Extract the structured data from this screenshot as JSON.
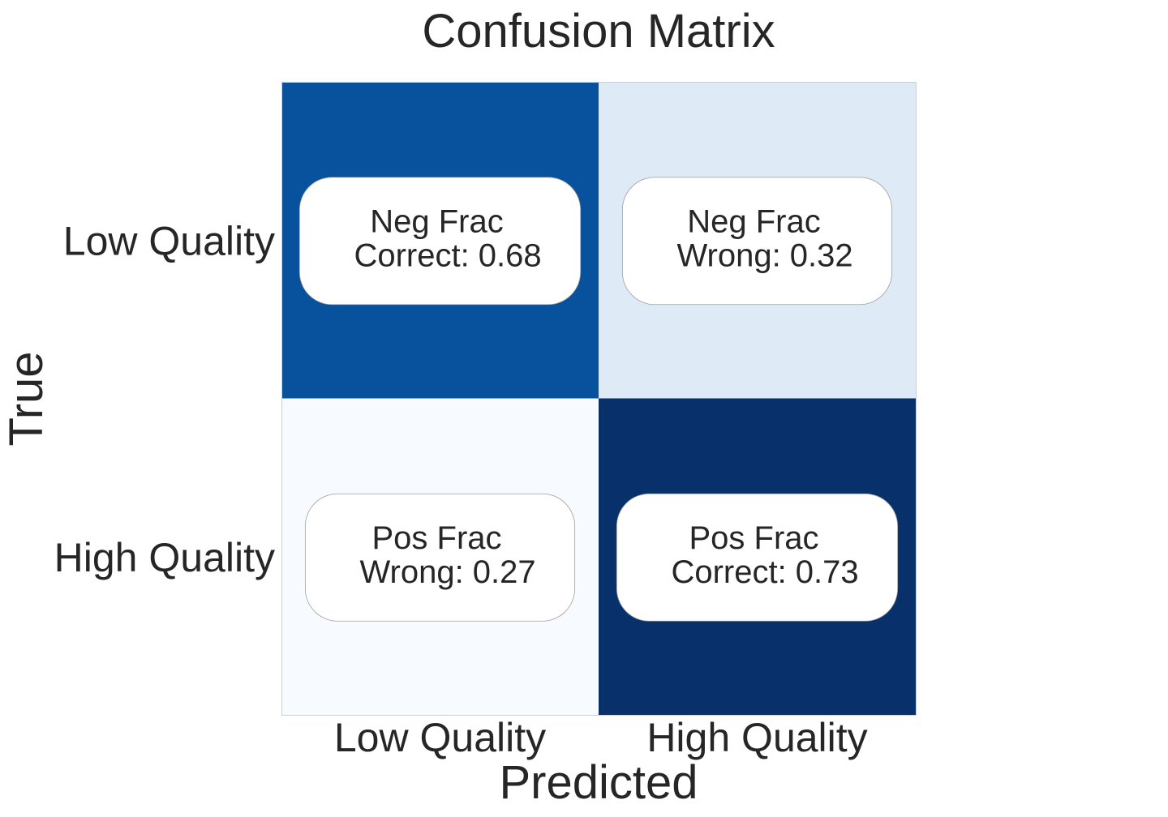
{
  "chart_data": {
    "type": "heatmap",
    "title": "Confusion Matrix",
    "xlabel": "Predicted",
    "ylabel": "True",
    "x_categories": [
      "Low Quality",
      "High Quality"
    ],
    "y_categories": [
      "Low Quality",
      "High Quality"
    ],
    "colormap": "Blues",
    "color_range": [
      0,
      1
    ],
    "values": [
      [
        0.68,
        0.32
      ],
      [
        0.27,
        0.73
      ]
    ],
    "annotations": [
      [
        {
          "line1": "Neg Frac",
          "line2": "Correct: 0.68"
        },
        {
          "line1": "Neg Frac",
          "line2": "Wrong: 0.32"
        }
      ],
      [
        {
          "line1": "Pos Frac",
          "line2": "Wrong: 0.27"
        },
        {
          "line1": "Pos Frac",
          "line2": "Correct: 0.73"
        }
      ]
    ],
    "cell_colors": [
      [
        "#08519c",
        "#deebf7"
      ],
      [
        "#f7fbff",
        "#08306b"
      ]
    ],
    "colorbar": false,
    "grid": false
  }
}
